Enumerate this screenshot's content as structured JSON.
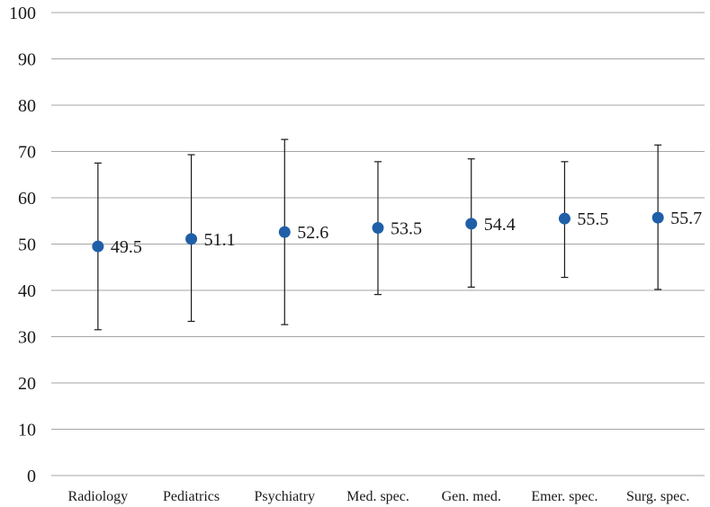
{
  "chart_data": {
    "type": "scatter",
    "title": "",
    "xlabel": "",
    "ylabel": "",
    "ylim": [
      0,
      100
    ],
    "yticks": [
      0,
      10,
      20,
      30,
      40,
      50,
      60,
      70,
      80,
      90,
      100
    ],
    "grid": true,
    "legend": "none",
    "categories": [
      "Radiology",
      "Pediatrics",
      "Psychiatry",
      "Med. spec.",
      "Gen. med.",
      "Emer. spec.",
      "Surg. spec."
    ],
    "series": [
      {
        "values": [
          49.5,
          51.1,
          52.6,
          53.5,
          54.4,
          55.5,
          55.7
        ],
        "error_low": [
          31.5,
          33.3,
          32.6,
          39.1,
          40.7,
          42.8,
          40.2
        ],
        "error_high": [
          67.5,
          69.3,
          72.6,
          67.8,
          68.4,
          67.8,
          71.4
        ],
        "data_labels": [
          "49.5",
          "51.1",
          "52.6",
          "53.5",
          "54.4",
          "55.5",
          "55.7"
        ]
      }
    ],
    "colors": {
      "marker": "#1f5fa8",
      "errorbar": "#1a1a1a",
      "grid": "#a6a6a6"
    }
  }
}
